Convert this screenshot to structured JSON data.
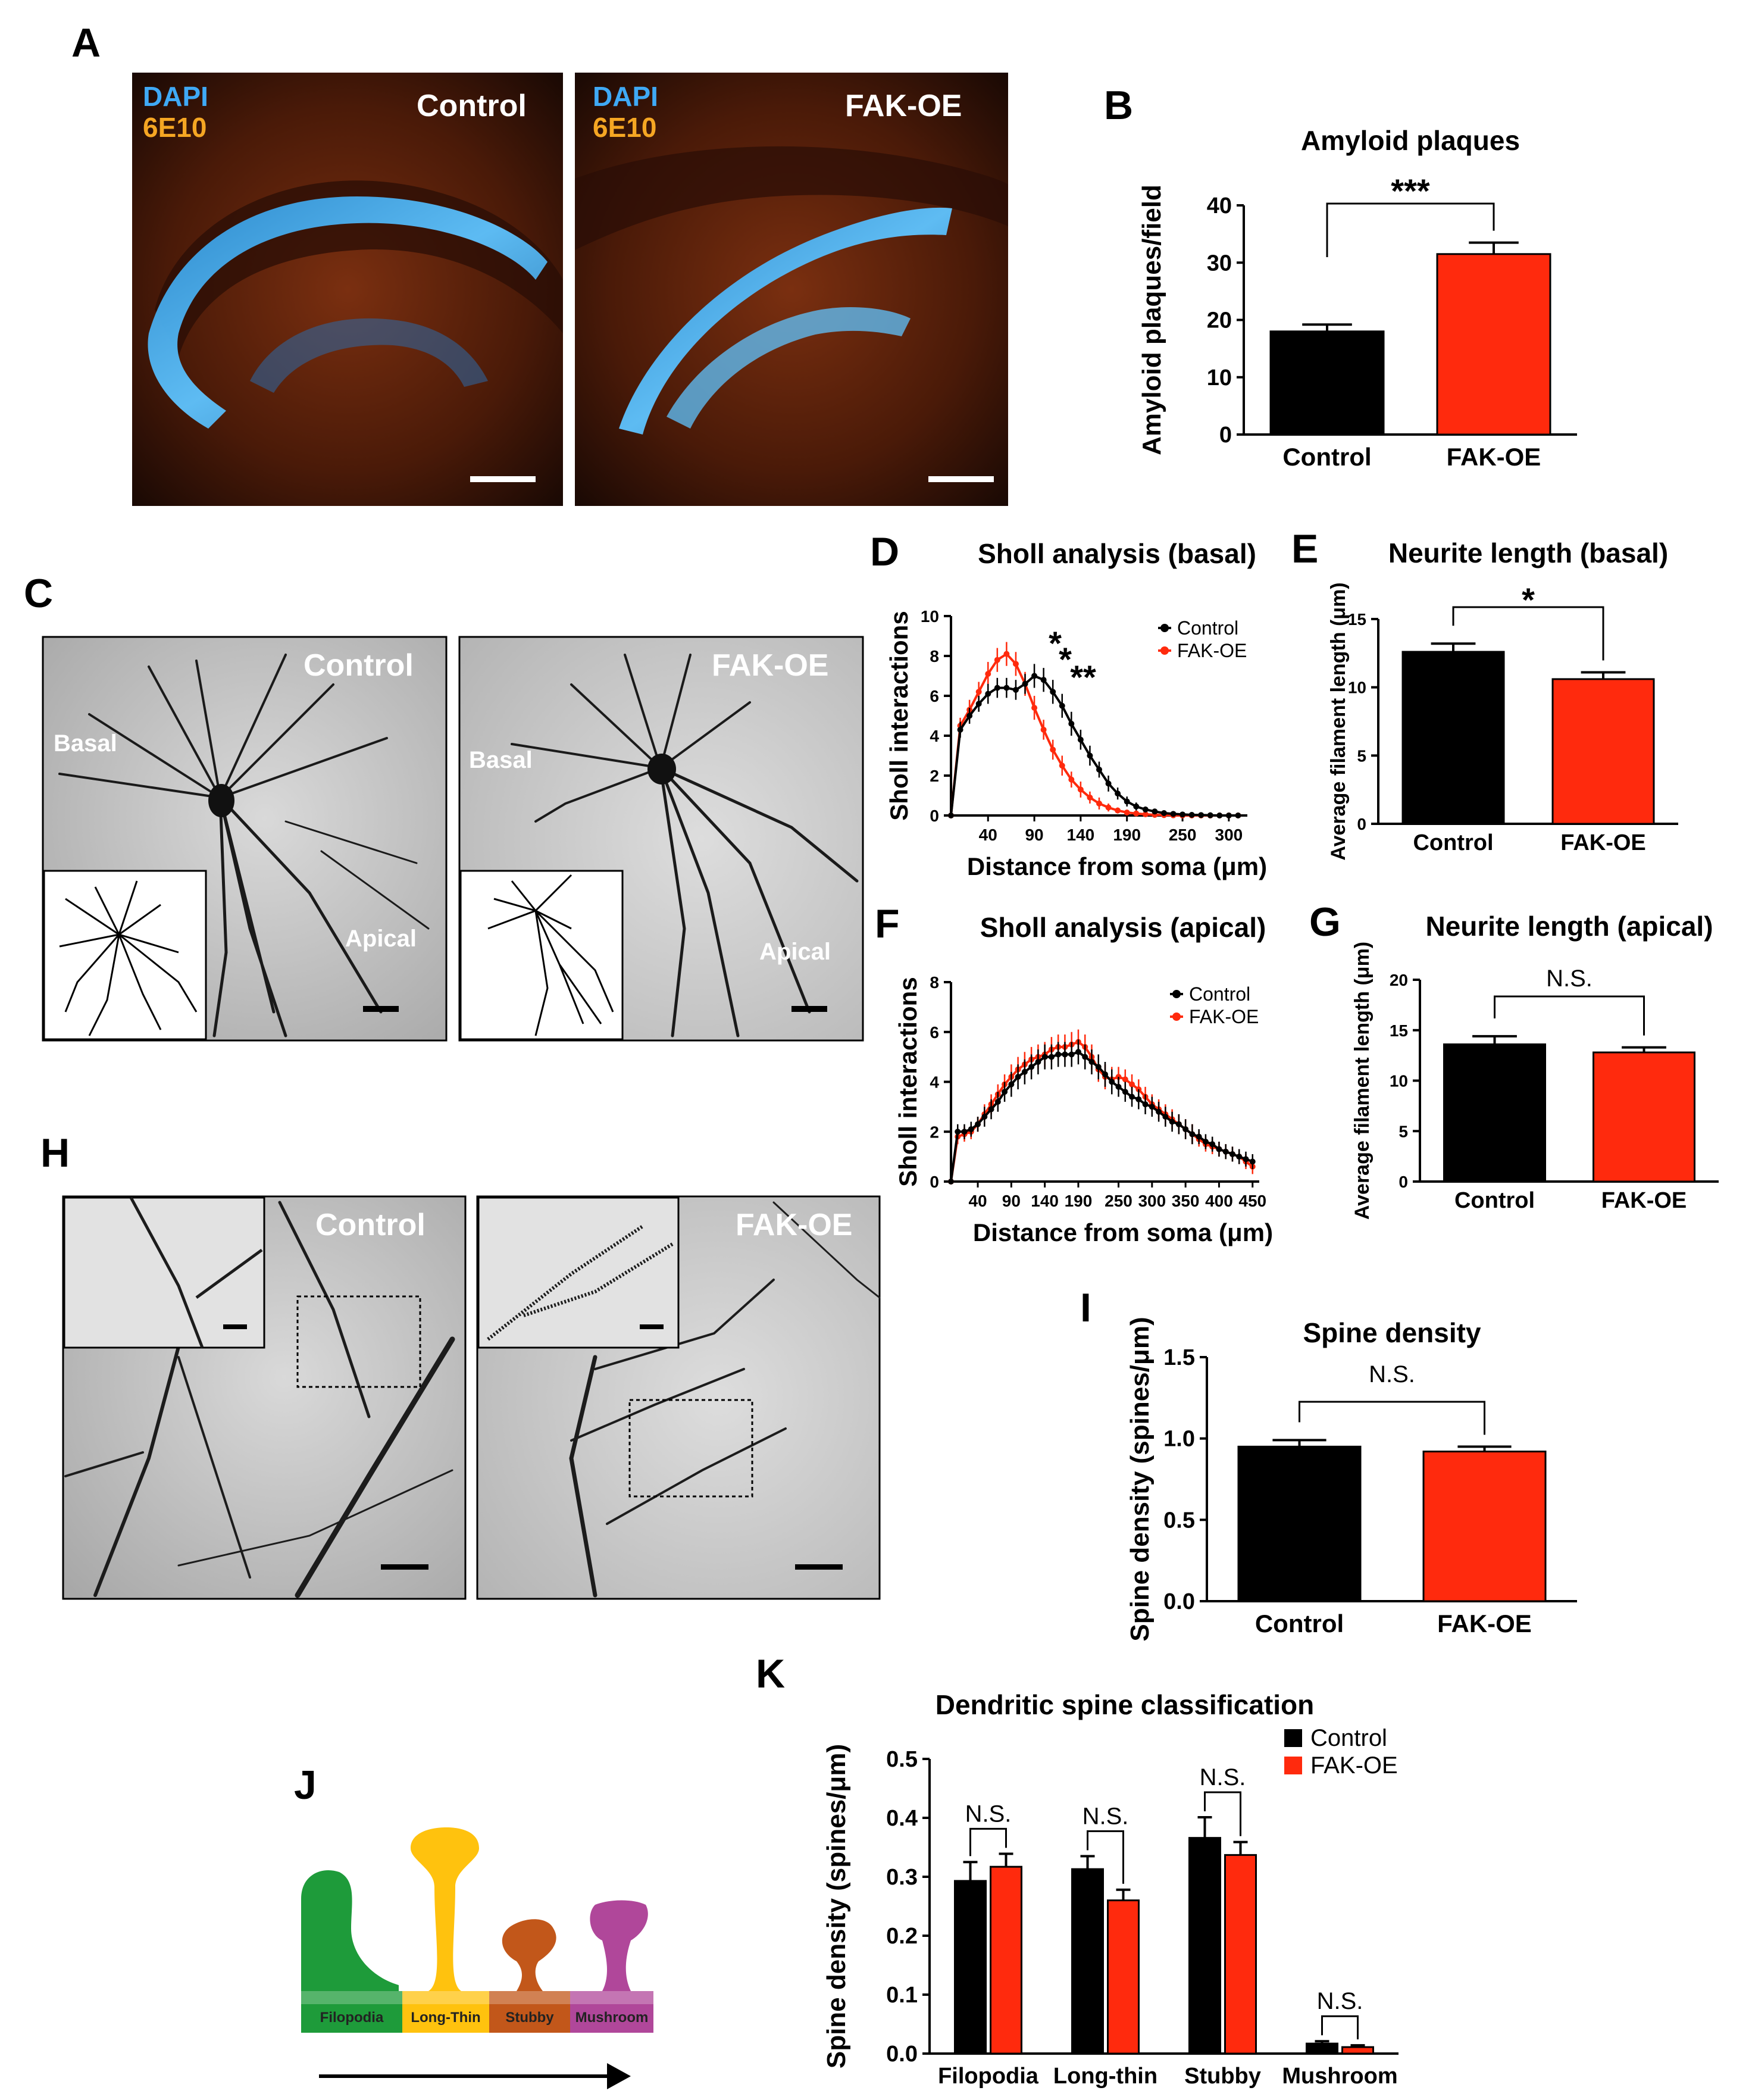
{
  "colors": {
    "control": "#000000",
    "fak_oe": "#ff2a0d",
    "filopodia": "#1e9b3a",
    "long_thin": "#ffc20e",
    "stubby": "#c2571a",
    "mushroom": "#b0479a"
  },
  "panels": {
    "A": {
      "label": "A",
      "left_dapi": "DAPI",
      "left_6e10": "6E10",
      "left_title": "Control",
      "right_dapi": "DAPI",
      "right_6e10": "6E10",
      "right_title": "FAK-OE"
    },
    "C": {
      "label": "C",
      "left_title": "Control",
      "right_title": "FAK-OE",
      "basal": "Basal",
      "apical": "Apical"
    },
    "H": {
      "label": "H",
      "left_title": "Control",
      "right_title": "FAK-OE"
    },
    "J": {
      "label": "J",
      "types": [
        "Filopodia",
        "Long-Thin",
        "Stubby",
        "Mushroom"
      ]
    }
  },
  "chart_data": [
    {
      "id": "B",
      "label": "B",
      "type": "bar",
      "title": "Amyloid plaques",
      "ylabel": "Amyloid plaques/field",
      "xlabel": "",
      "categories": [
        "Control",
        "FAK-OE"
      ],
      "values": [
        18,
        31.5
      ],
      "errors": [
        1.2,
        2.0
      ],
      "ylim": [
        0,
        40
      ],
      "yticks": [
        0,
        10,
        20,
        30,
        40
      ],
      "significance": "***"
    },
    {
      "id": "D",
      "label": "D",
      "type": "line",
      "title": "Sholl analysis (basal)",
      "ylabel": "Sholl interactions",
      "xlabel": "Distance from soma (μm)",
      "xlim": [
        0,
        320
      ],
      "ylim": [
        0,
        10
      ],
      "xticks": [
        40,
        90,
        140,
        190,
        250,
        300
      ],
      "yticks": [
        0,
        2,
        4,
        6,
        8,
        10
      ],
      "legend": [
        "Control",
        "FAK-OE"
      ],
      "significance": [
        "*",
        "*",
        "**"
      ],
      "series": [
        {
          "name": "Control",
          "x": [
            0,
            10,
            20,
            30,
            40,
            50,
            60,
            70,
            80,
            90,
            100,
            110,
            120,
            130,
            140,
            150,
            160,
            170,
            180,
            190,
            200,
            210,
            220,
            230,
            240,
            250,
            260,
            270,
            280,
            290,
            300,
            310
          ],
          "y": [
            0,
            4.3,
            5.0,
            5.6,
            6.1,
            6.4,
            6.4,
            6.3,
            6.6,
            7.0,
            6.8,
            6.2,
            5.5,
            4.6,
            3.8,
            3.0,
            2.3,
            1.6,
            1.1,
            0.7,
            0.45,
            0.3,
            0.2,
            0.12,
            0.08,
            0.05,
            0.03,
            0.02,
            0.01,
            0,
            0,
            0
          ],
          "err": [
            0,
            0.4,
            0.4,
            0.4,
            0.5,
            0.5,
            0.5,
            0.5,
            0.5,
            0.6,
            0.6,
            0.6,
            0.6,
            0.6,
            0.5,
            0.5,
            0.4,
            0.4,
            0.3,
            0.25,
            0.2,
            0.15,
            0.1,
            0.1,
            0.08,
            0.05,
            0.05,
            0.03,
            0.02,
            0,
            0,
            0
          ]
        },
        {
          "name": "FAK-OE",
          "x": [
            0,
            10,
            20,
            30,
            40,
            50,
            60,
            70,
            80,
            90,
            100,
            110,
            120,
            130,
            140,
            150,
            160,
            170,
            180,
            190,
            200,
            210,
            220,
            230,
            240,
            250,
            260,
            270,
            280,
            290,
            300,
            310
          ],
          "y": [
            0,
            4.5,
            5.3,
            6.2,
            7.1,
            7.8,
            8.1,
            7.6,
            6.6,
            5.4,
            4.3,
            3.3,
            2.5,
            1.8,
            1.3,
            0.9,
            0.6,
            0.4,
            0.25,
            0.15,
            0.1,
            0.06,
            0.03,
            0.02,
            0.01,
            0,
            0,
            0,
            0,
            0,
            0,
            0
          ],
          "err": [
            0,
            0.4,
            0.5,
            0.5,
            0.6,
            0.6,
            0.6,
            0.6,
            0.6,
            0.6,
            0.5,
            0.5,
            0.5,
            0.4,
            0.4,
            0.3,
            0.3,
            0.2,
            0.15,
            0.1,
            0.08,
            0.05,
            0.03,
            0.02,
            0.01,
            0,
            0,
            0,
            0,
            0,
            0,
            0
          ]
        }
      ]
    },
    {
      "id": "E",
      "label": "E",
      "type": "bar",
      "title": "Neurite length (basal)",
      "ylabel": "Average filament length (μm)",
      "xlabel": "",
      "categories": [
        "Control",
        "FAK-OE"
      ],
      "values": [
        12.6,
        10.6
      ],
      "errors": [
        0.6,
        0.5
      ],
      "ylim": [
        0,
        15
      ],
      "yticks": [
        0,
        5,
        10,
        15
      ],
      "significance": "*"
    },
    {
      "id": "F",
      "label": "F",
      "type": "line",
      "title": "Sholl analysis (apical)",
      "ylabel": "Sholl interactions",
      "xlabel": "Distance from soma (μm)",
      "xlim": [
        0,
        460
      ],
      "ylim": [
        0,
        8
      ],
      "xticks": [
        40,
        90,
        140,
        190,
        250,
        300,
        350,
        400,
        450
      ],
      "yticks": [
        0,
        2,
        4,
        6,
        8
      ],
      "legend": [
        "Control",
        "FAK-OE"
      ],
      "series": [
        {
          "name": "Control",
          "x": [
            0,
            10,
            20,
            30,
            40,
            50,
            60,
            70,
            80,
            90,
            100,
            110,
            120,
            130,
            140,
            150,
            160,
            170,
            180,
            190,
            200,
            210,
            220,
            230,
            240,
            250,
            260,
            270,
            280,
            290,
            300,
            310,
            320,
            330,
            340,
            350,
            360,
            370,
            380,
            390,
            400,
            410,
            420,
            430,
            440,
            450
          ],
          "y": [
            0,
            2.0,
            2.0,
            2.1,
            2.3,
            2.6,
            2.9,
            3.2,
            3.6,
            3.9,
            4.2,
            4.4,
            4.6,
            4.8,
            5.0,
            5.0,
            5.1,
            5.1,
            5.1,
            5.2,
            5.0,
            4.8,
            4.6,
            4.3,
            4.0,
            3.8,
            3.6,
            3.4,
            3.3,
            3.1,
            3.0,
            2.8,
            2.6,
            2.4,
            2.3,
            2.1,
            1.9,
            1.8,
            1.6,
            1.5,
            1.3,
            1.2,
            1.1,
            1.0,
            0.9,
            0.8
          ],
          "err": [
            0,
            0.3,
            0.3,
            0.3,
            0.3,
            0.4,
            0.4,
            0.4,
            0.4,
            0.5,
            0.5,
            0.5,
            0.5,
            0.5,
            0.5,
            0.5,
            0.5,
            0.5,
            0.5,
            0.5,
            0.5,
            0.5,
            0.5,
            0.5,
            0.5,
            0.4,
            0.4,
            0.4,
            0.4,
            0.4,
            0.4,
            0.4,
            0.4,
            0.4,
            0.4,
            0.4,
            0.4,
            0.3,
            0.3,
            0.3,
            0.3,
            0.3,
            0.3,
            0.3,
            0.3,
            0.3
          ]
        },
        {
          "name": "FAK-OE",
          "x": [
            0,
            10,
            20,
            30,
            40,
            50,
            60,
            70,
            80,
            90,
            100,
            110,
            120,
            130,
            140,
            150,
            160,
            170,
            180,
            190,
            200,
            210,
            220,
            230,
            240,
            250,
            260,
            270,
            280,
            290,
            300,
            310,
            320,
            330,
            340,
            350,
            360,
            370,
            380,
            390,
            400,
            410,
            420,
            430,
            440,
            450
          ],
          "y": [
            0,
            1.8,
            1.9,
            2.0,
            2.3,
            2.7,
            3.1,
            3.5,
            3.9,
            4.2,
            4.5,
            4.7,
            4.9,
            5.0,
            5.1,
            5.3,
            5.4,
            5.4,
            5.5,
            5.6,
            5.4,
            5.0,
            4.5,
            4.2,
            4.1,
            4.2,
            4.1,
            3.9,
            3.7,
            3.4,
            3.1,
            2.9,
            2.7,
            2.5,
            2.3,
            2.1,
            1.9,
            1.7,
            1.5,
            1.4,
            1.3,
            1.2,
            1.1,
            1.0,
            0.8,
            0.6
          ],
          "err": [
            0,
            0.3,
            0.3,
            0.3,
            0.3,
            0.4,
            0.4,
            0.4,
            0.4,
            0.5,
            0.5,
            0.5,
            0.5,
            0.5,
            0.5,
            0.5,
            0.5,
            0.5,
            0.5,
            0.5,
            0.5,
            0.5,
            0.5,
            0.5,
            0.5,
            0.4,
            0.4,
            0.4,
            0.4,
            0.4,
            0.4,
            0.4,
            0.4,
            0.4,
            0.4,
            0.4,
            0.4,
            0.3,
            0.3,
            0.3,
            0.3,
            0.3,
            0.3,
            0.3,
            0.3,
            0.3
          ]
        }
      ]
    },
    {
      "id": "G",
      "label": "G",
      "type": "bar",
      "title": "Neurite length (apical)",
      "ylabel": "Average filament length (μm)",
      "xlabel": "",
      "categories": [
        "Control",
        "FAK-OE"
      ],
      "values": [
        13.6,
        12.8
      ],
      "errors": [
        0.8,
        0.5
      ],
      "ylim": [
        0,
        20
      ],
      "yticks": [
        0,
        5,
        10,
        15,
        20
      ],
      "significance": "N.S."
    },
    {
      "id": "I",
      "label": "I",
      "type": "bar",
      "title": "Spine density",
      "ylabel": "Spine density (spines/μm)",
      "xlabel": "",
      "categories": [
        "Control",
        "FAK-OE"
      ],
      "values": [
        0.95,
        0.92
      ],
      "errors": [
        0.04,
        0.03
      ],
      "ylim": [
        0,
        1.5
      ],
      "yticks": [
        0.0,
        0.5,
        1.0,
        1.5
      ],
      "significance": "N.S."
    },
    {
      "id": "K",
      "label": "K",
      "type": "bar",
      "title": "Dendritic spine classification",
      "ylabel": "Spine density (spines/μm)",
      "xlabel": "",
      "categories": [
        "Filopodia",
        "Long-thin",
        "Stubby",
        "Mushroom"
      ],
      "legend": [
        "Control",
        "FAK-OE"
      ],
      "ylim": [
        0,
        0.5
      ],
      "yticks": [
        0.0,
        0.1,
        0.2,
        0.3,
        0.4,
        0.5
      ],
      "series": [
        {
          "name": "Control",
          "values": [
            0.293,
            0.313,
            0.366,
            0.017
          ],
          "errors": [
            0.032,
            0.022,
            0.035,
            0.004
          ]
        },
        {
          "name": "FAK-OE",
          "values": [
            0.317,
            0.26,
            0.337,
            0.011
          ],
          "errors": [
            0.022,
            0.018,
            0.022,
            0.003
          ]
        }
      ],
      "significance": [
        "N.S.",
        "N.S.",
        "N.S.",
        "N.S."
      ]
    }
  ]
}
